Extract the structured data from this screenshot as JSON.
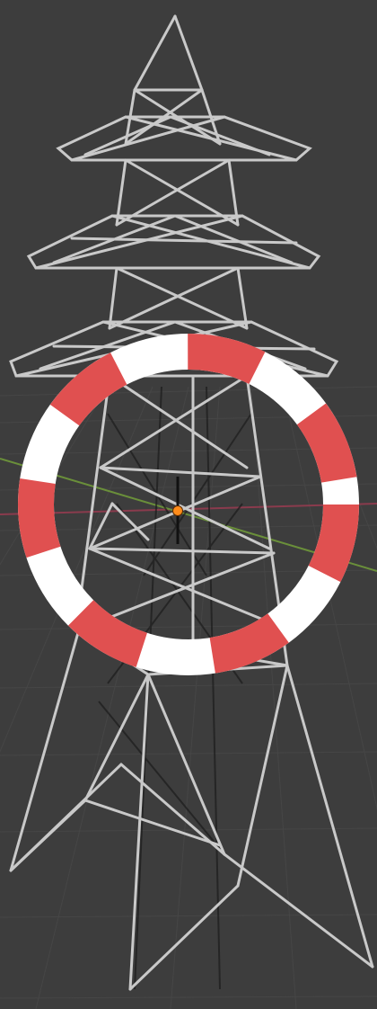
{
  "viewport": {
    "background_color": "#3d3d3d",
    "grid_line_color": "#474747",
    "axis_x_color": "#8a3b4d",
    "axis_y_color": "#6a8f3a",
    "model_wire_color": "#c9c9c9",
    "model_shadow_color": "#1c1c1c",
    "origin_color": "#ff8c1a",
    "cursor_ring_colors": [
      "#e05050",
      "#ffffff"
    ],
    "cursor_icon": "3d-cursor-icon",
    "origin_icon": "object-origin-icon",
    "model_icon": "transmission-tower-wireframe"
  }
}
